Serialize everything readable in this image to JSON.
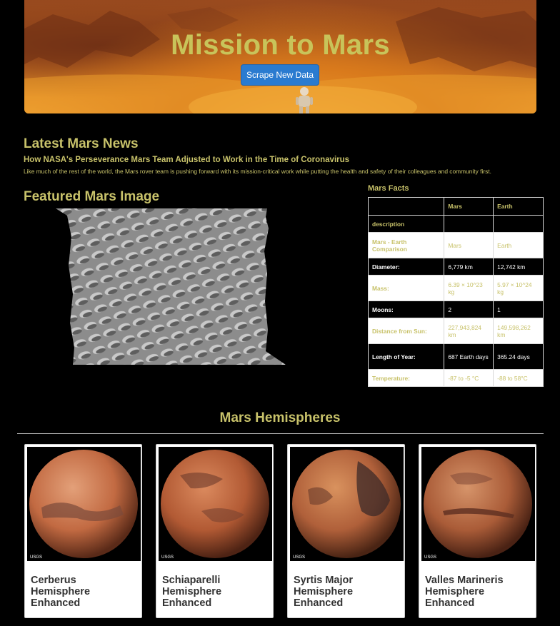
{
  "header": {
    "title": "Mission to Mars",
    "scrape_label": "Scrape New Data"
  },
  "news": {
    "section_title": "Latest Mars News",
    "headline": "How NASA's Perseverance Mars Team Adjusted to Work in the Time of Coronavirus",
    "teaser": "Like much of the rest of the world, the Mars rover team is pushing forward with its mission-critical work while putting the health and safety of their colleagues and community first."
  },
  "featured": {
    "section_title": "Featured Mars Image"
  },
  "facts": {
    "section_title": "Mars Facts",
    "columns": [
      "",
      "Mars",
      "Earth"
    ],
    "rows": [
      {
        "label": "description",
        "mars": "",
        "earth": ""
      },
      {
        "label": "Mars - Earth Comparison",
        "mars": "Mars",
        "earth": "Earth"
      },
      {
        "label": "Diameter:",
        "mars": "6,779 km",
        "earth": "12,742 km"
      },
      {
        "label": "Mass:",
        "mars": "6.39 × 10^23 kg",
        "earth": "5.97 × 10^24 kg"
      },
      {
        "label": "Moons:",
        "mars": "2",
        "earth": "1"
      },
      {
        "label": "Distance from Sun:",
        "mars": "227,943,824 km",
        "earth": "149,598,262 km"
      },
      {
        "label": "Length of Year:",
        "mars": "687 Earth days",
        "earth": "365.24 days"
      },
      {
        "label": "Temperature:",
        "mars": "-87 to -5 °C",
        "earth": "-88 to 58°C"
      }
    ]
  },
  "hemispheres": {
    "section_title": "Mars Hemispheres",
    "items": [
      {
        "title": "Cerberus Hemisphere Enhanced",
        "logo": "USGS"
      },
      {
        "title": "Schiaparelli Hemisphere Enhanced",
        "logo": "USGS"
      },
      {
        "title": "Syrtis Major Hemisphere Enhanced",
        "logo": "USGS"
      },
      {
        "title": "Valles Marineris Hemisphere Enhanced",
        "logo": "USGS"
      }
    ]
  },
  "colors": {
    "accent_text": "#c8c26a",
    "button": "#2a7bd0",
    "background": "#000000"
  }
}
